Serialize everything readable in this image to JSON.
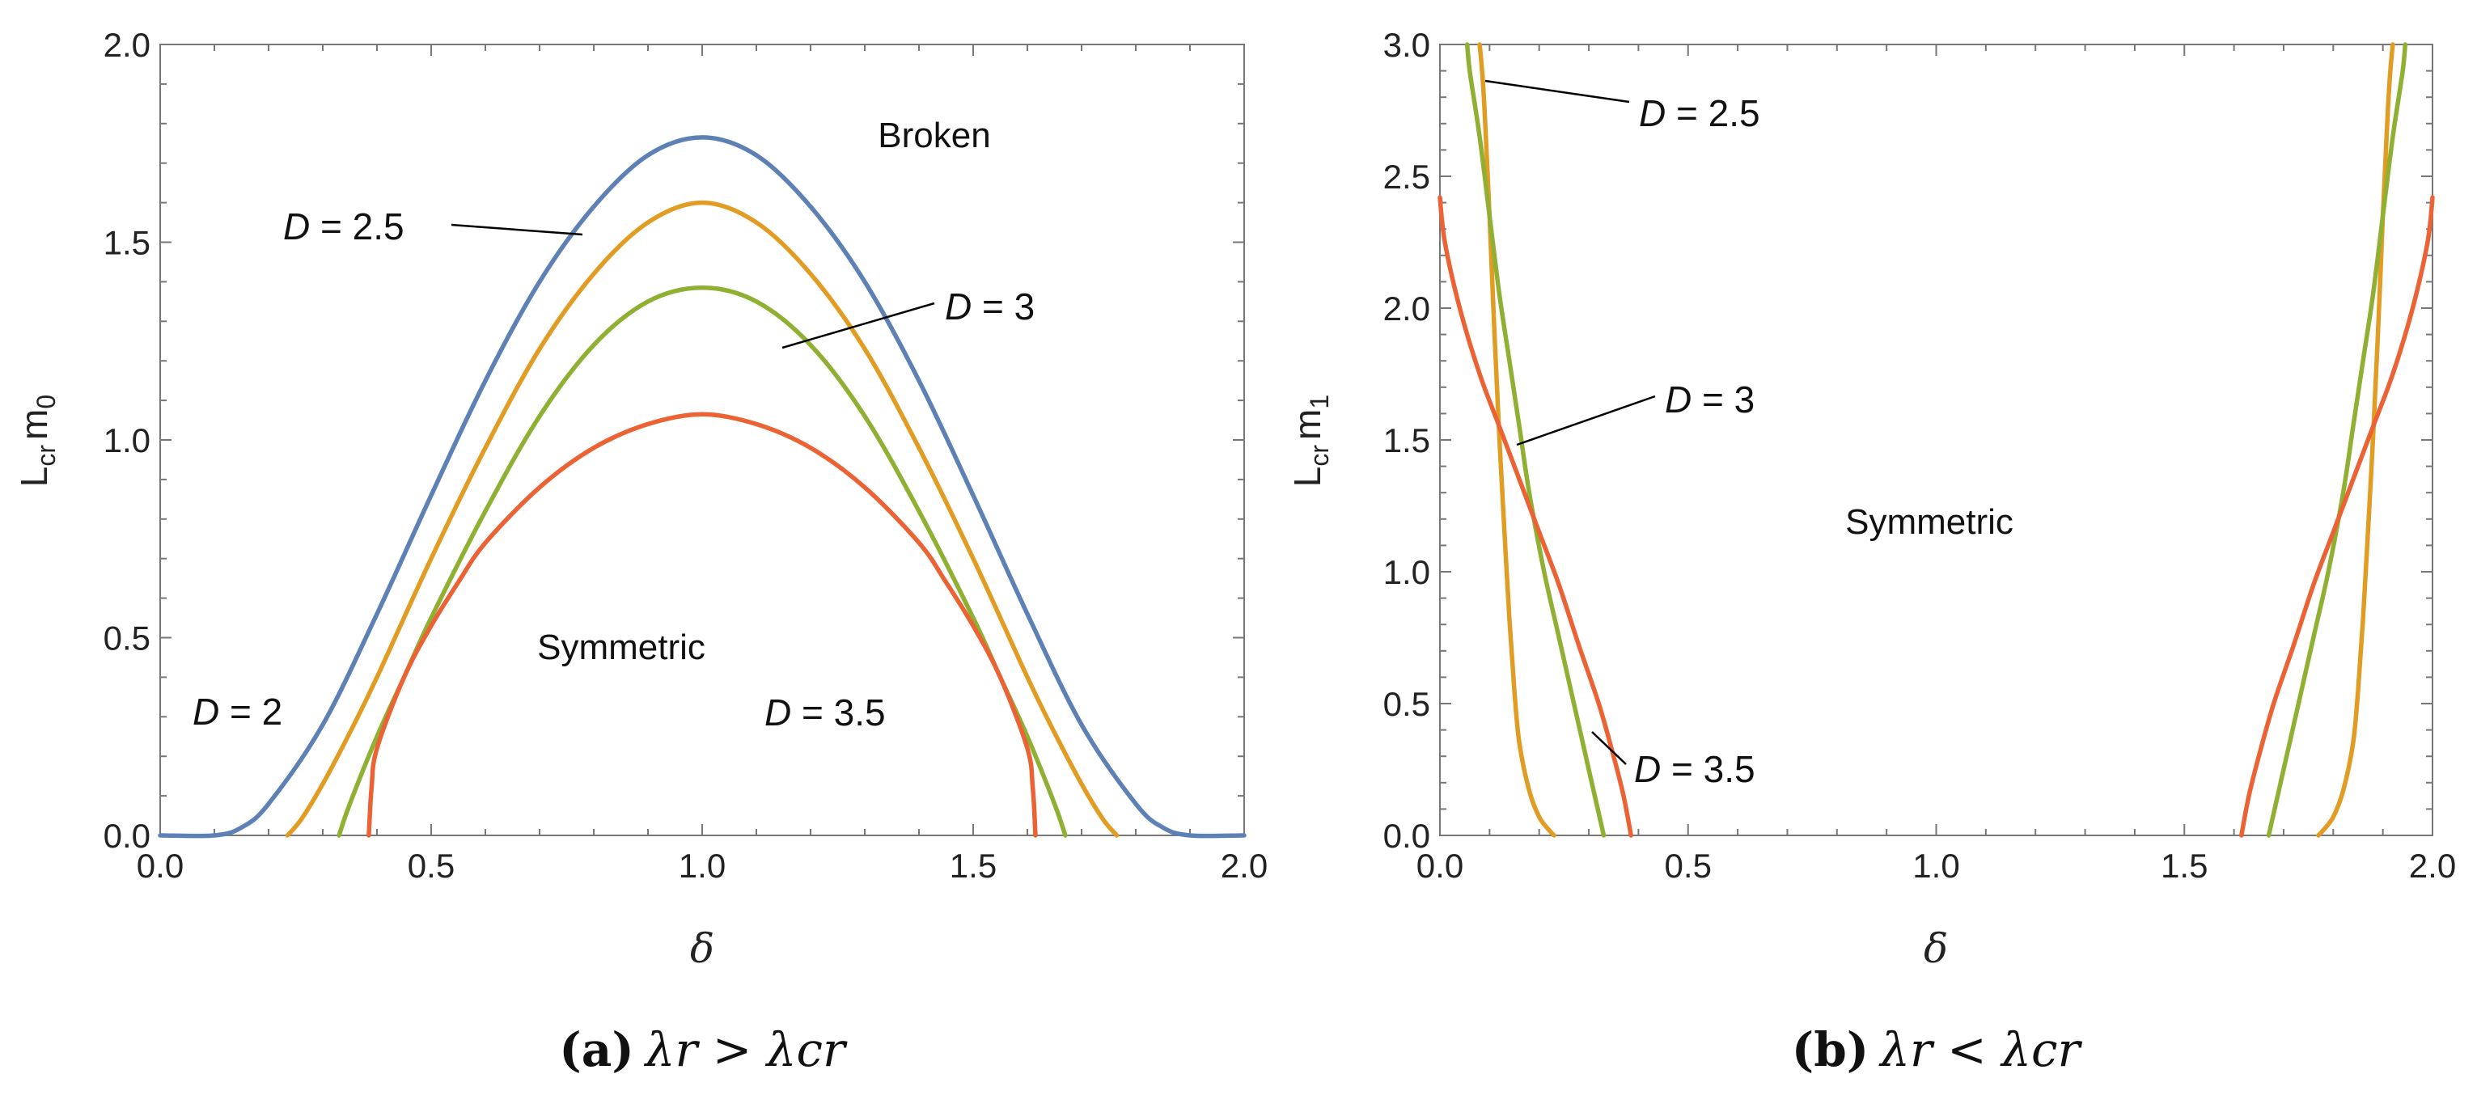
{
  "chart_data": [
    {
      "type": "line",
      "panel": "a",
      "caption": {
        "label": "(a)",
        "text": "λr > λcr"
      },
      "xlabel": "δ",
      "ylabel": {
        "main": "L",
        "sub1": "cr",
        "mid": "m",
        "sub2": "0"
      },
      "xlim": [
        0,
        2
      ],
      "ylim": [
        0,
        2
      ],
      "xticks": [
        "0.0",
        "0.5",
        "1.0",
        "1.5",
        "2.0"
      ],
      "yticks": [
        "0.0",
        "0.5",
        "1.0",
        "1.5",
        "2.0"
      ],
      "series": [
        {
          "name": "D = 2",
          "color": "#5E81B5",
          "x": [
            0.0,
            0.1,
            0.15,
            0.2,
            0.3,
            0.4,
            0.5,
            0.6,
            0.7,
            0.8,
            0.9,
            1.0,
            1.1,
            1.2,
            1.3,
            1.4,
            1.5,
            1.6,
            1.7,
            1.8,
            1.85,
            1.9,
            2.0
          ],
          "y": [
            0.0,
            0.0,
            0.02,
            0.08,
            0.28,
            0.56,
            0.86,
            1.15,
            1.4,
            1.59,
            1.72,
            1.765,
            1.72,
            1.59,
            1.4,
            1.15,
            0.86,
            0.56,
            0.28,
            0.08,
            0.02,
            0.0,
            0.0
          ]
        },
        {
          "name": "D = 2.5",
          "color": "#E19C24",
          "x": [
            0.235,
            0.26,
            0.3,
            0.35,
            0.4,
            0.5,
            0.6,
            0.7,
            0.8,
            0.9,
            1.0,
            1.1,
            1.2,
            1.3,
            1.4,
            1.5,
            1.6,
            1.65,
            1.7,
            1.74,
            1.765
          ],
          "y": [
            0.0,
            0.04,
            0.13,
            0.26,
            0.4,
            0.7,
            0.98,
            1.23,
            1.42,
            1.55,
            1.6,
            1.55,
            1.42,
            1.23,
            0.98,
            0.7,
            0.4,
            0.26,
            0.13,
            0.04,
            0.0
          ]
        },
        {
          "name": "D = 3",
          "color": "#8FB032",
          "x": [
            0.33,
            0.35,
            0.4,
            0.45,
            0.5,
            0.6,
            0.7,
            0.8,
            0.9,
            1.0,
            1.1,
            1.2,
            1.3,
            1.4,
            1.5,
            1.55,
            1.6,
            1.65,
            1.67
          ],
          "y": [
            0.0,
            0.08,
            0.25,
            0.4,
            0.55,
            0.82,
            1.06,
            1.24,
            1.35,
            1.385,
            1.35,
            1.24,
            1.06,
            0.82,
            0.55,
            0.4,
            0.25,
            0.08,
            0.0
          ]
        },
        {
          "name": "D = 3.5",
          "color": "#EB6235",
          "x": [
            0.385,
            0.39,
            0.4,
            0.45,
            0.5,
            0.55,
            0.6,
            0.7,
            0.8,
            0.9,
            1.0,
            1.1,
            1.2,
            1.3,
            1.4,
            1.45,
            1.5,
            1.55,
            1.6,
            1.61,
            1.615
          ],
          "y": [
            0.0,
            0.12,
            0.22,
            0.4,
            0.53,
            0.64,
            0.74,
            0.88,
            0.98,
            1.04,
            1.065,
            1.04,
            0.98,
            0.88,
            0.74,
            0.64,
            0.53,
            0.4,
            0.22,
            0.12,
            0.0
          ]
        }
      ],
      "annotations": [
        {
          "text": "Broken",
          "kind": "region"
        },
        {
          "text": "Symmetric",
          "kind": "region"
        },
        {
          "var": "D",
          "rest": " = 2",
          "kind": "label"
        },
        {
          "var": "D",
          "rest": " = 2.5",
          "kind": "label"
        },
        {
          "var": "D",
          "rest": " = 3",
          "kind": "label"
        },
        {
          "var": "D",
          "rest": " = 3.5",
          "kind": "label"
        }
      ]
    },
    {
      "type": "line",
      "panel": "b",
      "caption": {
        "label": "(b)",
        "text": "λr < λcr"
      },
      "xlabel": "δ",
      "ylabel": {
        "main": "L",
        "sub1": "cr",
        "mid": "m",
        "sub2": "1"
      },
      "xlim": [
        0,
        2
      ],
      "ylim": [
        0,
        3
      ],
      "xticks": [
        "0.0",
        "0.5",
        "1.0",
        "1.5",
        "2.0"
      ],
      "yticks": [
        "0.0",
        "0.5",
        "1.0",
        "1.5",
        "2.0",
        "2.5",
        "3.0"
      ],
      "series": [
        {
          "name": "D = 2.5 left",
          "color": "#E19C24",
          "x": [
            0.23,
            0.22,
            0.2,
            0.18,
            0.16,
            0.15,
            0.14,
            0.13,
            0.12,
            0.11,
            0.1,
            0.095,
            0.09,
            0.085,
            0.08
          ],
          "y": [
            0.0,
            0.02,
            0.07,
            0.17,
            0.35,
            0.55,
            0.82,
            1.15,
            1.5,
            1.9,
            2.35,
            2.55,
            2.75,
            2.9,
            3.0
          ]
        },
        {
          "name": "D = 2.5 right",
          "color": "#E19C24",
          "x": [
            1.77,
            1.78,
            1.8,
            1.82,
            1.84,
            1.85,
            1.86,
            1.87,
            1.88,
            1.89,
            1.9,
            1.905,
            1.91,
            1.915,
            1.92
          ],
          "y": [
            0.0,
            0.02,
            0.07,
            0.17,
            0.35,
            0.55,
            0.82,
            1.15,
            1.5,
            1.9,
            2.35,
            2.55,
            2.75,
            2.9,
            3.0
          ]
        },
        {
          "name": "D = 3 left",
          "color": "#8FB032",
          "x": [
            0.33,
            0.3,
            0.27,
            0.24,
            0.21,
            0.18,
            0.16,
            0.14,
            0.12,
            0.1,
            0.08,
            0.06,
            0.055
          ],
          "y": [
            0.0,
            0.25,
            0.5,
            0.75,
            1.0,
            1.3,
            1.55,
            1.8,
            2.05,
            2.35,
            2.65,
            2.9,
            3.0
          ]
        },
        {
          "name": "D = 3 right",
          "color": "#8FB032",
          "x": [
            1.67,
            1.7,
            1.73,
            1.76,
            1.79,
            1.82,
            1.84,
            1.86,
            1.88,
            1.9,
            1.92,
            1.94,
            1.945
          ],
          "y": [
            0.0,
            0.25,
            0.5,
            0.75,
            1.0,
            1.3,
            1.55,
            1.8,
            2.05,
            2.35,
            2.65,
            2.9,
            3.0
          ]
        },
        {
          "name": "D = 3.5 left",
          "color": "#EB6235",
          "x": [
            0.385,
            0.37,
            0.35,
            0.32,
            0.28,
            0.24,
            0.2,
            0.16,
            0.12,
            0.08,
            0.04,
            0.01,
            0.0
          ],
          "y": [
            0.0,
            0.15,
            0.3,
            0.5,
            0.72,
            0.95,
            1.15,
            1.35,
            1.55,
            1.75,
            2.0,
            2.25,
            2.42
          ]
        },
        {
          "name": "D = 3.5 right",
          "color": "#EB6235",
          "x": [
            1.615,
            1.63,
            1.65,
            1.68,
            1.72,
            1.76,
            1.8,
            1.84,
            1.88,
            1.92,
            1.96,
            1.99,
            2.0
          ],
          "y": [
            0.0,
            0.15,
            0.3,
            0.5,
            0.72,
            0.95,
            1.15,
            1.35,
            1.55,
            1.75,
            2.0,
            2.25,
            2.42
          ]
        }
      ],
      "annotations": [
        {
          "text": "Symmetric",
          "kind": "region"
        },
        {
          "var": "D",
          "rest": " = 2.5",
          "kind": "label"
        },
        {
          "var": "D",
          "rest": " = 3",
          "kind": "label"
        },
        {
          "var": "D",
          "rest": " = 3.5",
          "kind": "label"
        }
      ]
    }
  ]
}
